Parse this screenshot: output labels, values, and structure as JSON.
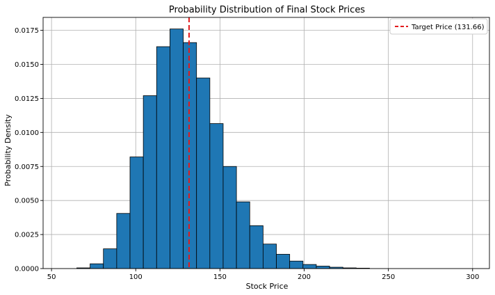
{
  "chart_data": {
    "type": "bar",
    "title": "Probability Distribution of Final Stock Prices",
    "xlabel": "Stock Price",
    "ylabel": "Probability Density",
    "xlim": [
      45,
      310
    ],
    "ylim": [
      0,
      0.01845
    ],
    "grid": true,
    "legend_position": "top-right",
    "bar_color": "#1f77b4",
    "bar_edge_color": "#000000",
    "bin_width": 7.9,
    "bin_start": 65,
    "bins": [
      {
        "x0": 65.0,
        "value": 5e-05
      },
      {
        "x0": 72.9,
        "value": 0.00035
      },
      {
        "x0": 80.8,
        "value": 0.00145
      },
      {
        "x0": 88.7,
        "value": 0.00405
      },
      {
        "x0": 96.6,
        "value": 0.0082
      },
      {
        "x0": 104.5,
        "value": 0.0127
      },
      {
        "x0": 112.4,
        "value": 0.0163
      },
      {
        "x0": 120.3,
        "value": 0.0176
      },
      {
        "x0": 128.2,
        "value": 0.0166
      },
      {
        "x0": 136.1,
        "value": 0.014
      },
      {
        "x0": 144.0,
        "value": 0.01065
      },
      {
        "x0": 151.9,
        "value": 0.0075
      },
      {
        "x0": 159.8,
        "value": 0.0049
      },
      {
        "x0": 167.7,
        "value": 0.00315
      },
      {
        "x0": 175.6,
        "value": 0.0018
      },
      {
        "x0": 183.5,
        "value": 0.00105
      },
      {
        "x0": 191.4,
        "value": 0.00055
      },
      {
        "x0": 199.3,
        "value": 0.0003
      },
      {
        "x0": 207.2,
        "value": 0.00018
      },
      {
        "x0": 215.1,
        "value": 0.0001
      },
      {
        "x0": 223.0,
        "value": 5e-05
      },
      {
        "x0": 230.9,
        "value": 3e-05
      }
    ],
    "x_ticks": [
      50,
      100,
      150,
      200,
      250,
      300
    ],
    "y_ticks": [
      0.0,
      0.0025,
      0.005,
      0.0075,
      0.01,
      0.0125,
      0.015,
      0.0175
    ],
    "x_tick_labels": [
      "50",
      "100",
      "150",
      "200",
      "250",
      "300"
    ],
    "y_tick_labels": [
      "0.0000",
      "0.0025",
      "0.0050",
      "0.0075",
      "0.0100",
      "0.0125",
      "0.0150",
      "0.0175"
    ],
    "target_line": {
      "value": 131.66,
      "label": "Target Price (131.66)",
      "color": "#e31a1c",
      "style": "dashed"
    }
  }
}
